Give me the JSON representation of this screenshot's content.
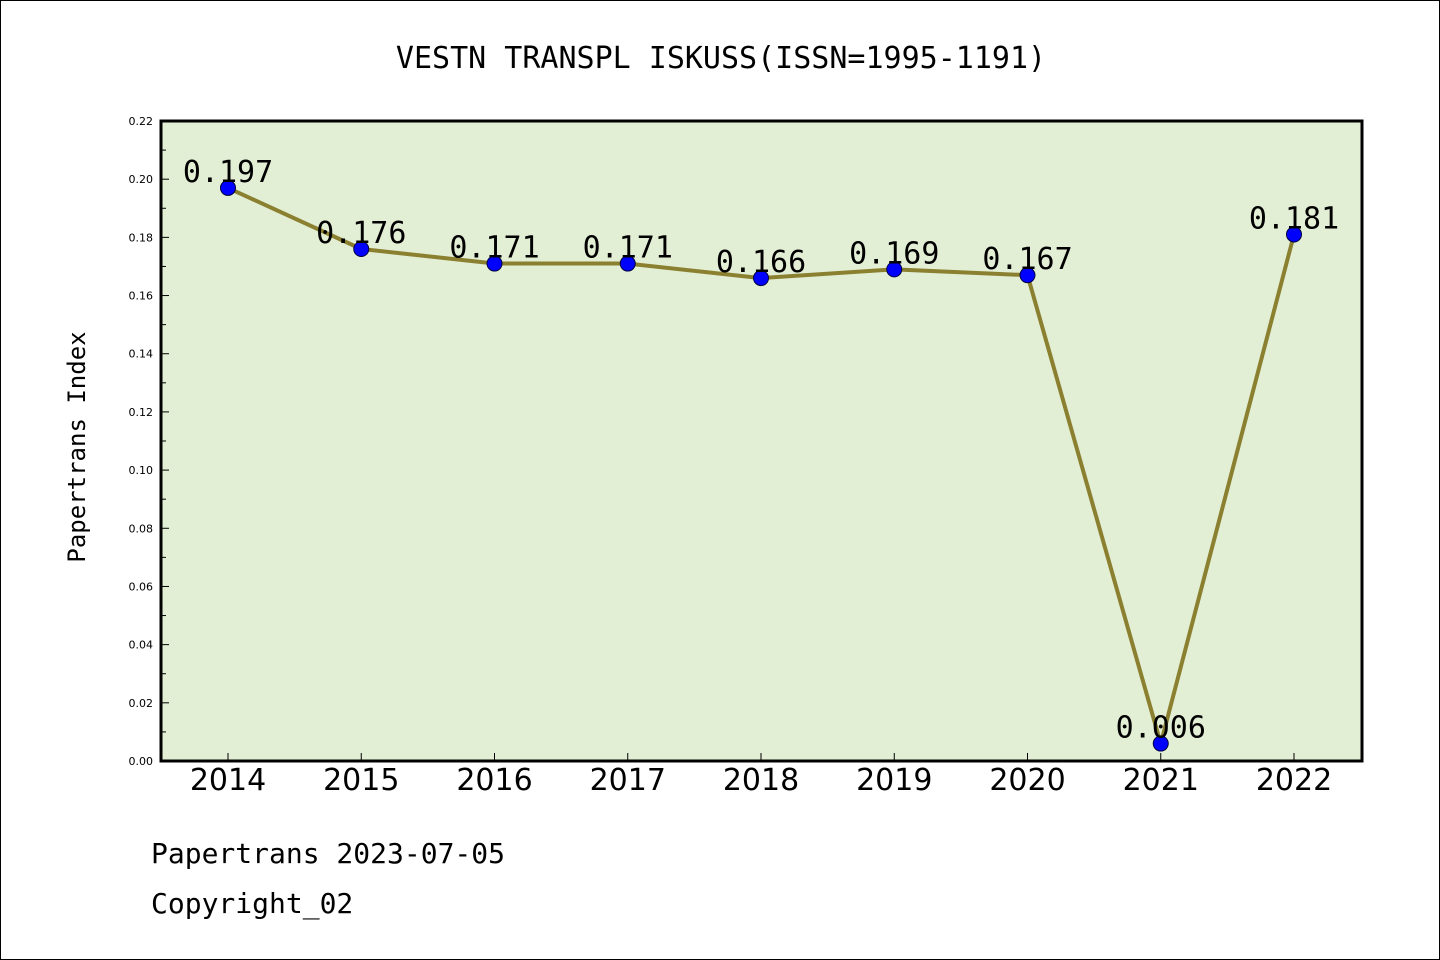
{
  "chart_data": {
    "type": "line",
    "title": "VESTN TRANSPL ISKUSS(ISSN=1995-1191)",
    "xlabel": "",
    "ylabel": "Papertrans Index",
    "categories": [
      "2014",
      "2015",
      "2016",
      "2017",
      "2018",
      "2019",
      "2020",
      "2021",
      "2022"
    ],
    "series": [
      {
        "values": [
          0.197,
          0.176,
          0.171,
          0.171,
          0.166,
          0.169,
          0.167,
          0.006,
          0.181
        ],
        "data_labels": [
          "0.197",
          "0.176",
          "0.171",
          "0.171",
          "0.166",
          "0.169",
          "0.167",
          "0.006",
          "0.181"
        ]
      }
    ],
    "ylim": [
      0.0,
      0.22
    ],
    "yticks": [
      "0.00",
      "0.02",
      "0.04",
      "0.06",
      "0.08",
      "0.10",
      "0.12",
      "0.14",
      "0.16",
      "0.18",
      "0.20",
      "0.22"
    ],
    "grid": false,
    "legend": "none"
  },
  "footer": {
    "line1": "Papertrans 2023-07-05",
    "line2": "Copyright_02"
  },
  "colors": {
    "plot_background": "#e2efd5",
    "line": "#8b8030",
    "marker": "#0000ff",
    "axis": "#000000"
  }
}
